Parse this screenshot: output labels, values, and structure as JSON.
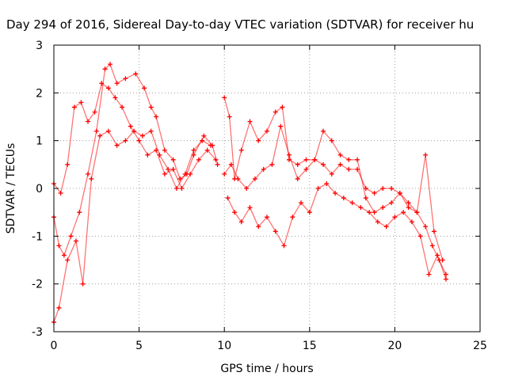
{
  "chart_data": {
    "type": "scatter",
    "title": "Day 294 of 2016, Sidereal Day-to-day VTEC variation (SDTVAR) for receiver hu",
    "xlabel": "GPS time / hours",
    "ylabel": "SDTVAR / TECUs",
    "xlim": [
      0,
      25
    ],
    "ylim": [
      -3,
      3
    ],
    "xticks": [
      "0",
      "5",
      "10",
      "15",
      "20",
      "25"
    ],
    "yticks": [
      "-3",
      "-2",
      "-1",
      "0",
      "1",
      "2",
      "3"
    ],
    "grid": true,
    "marker": "plus",
    "color": "#ff0000",
    "series": [
      {
        "x": [
          0.0,
          0.3,
          0.6,
          1.0,
          1.5,
          2.0,
          2.5,
          3.0,
          3.3,
          3.7,
          4.2,
          4.8,
          5.3,
          5.7,
          6.0,
          6.5,
          7.0,
          7.4,
          7.8,
          8.2,
          8.8,
          9.3,
          9.6
        ],
        "values": [
          -0.6,
          -1.2,
          -1.4,
          -1.0,
          -0.5,
          0.3,
          1.2,
          2.5,
          2.6,
          2.2,
          2.3,
          2.4,
          2.1,
          1.7,
          1.5,
          0.8,
          0.6,
          0.2,
          0.3,
          0.7,
          1.1,
          0.9,
          0.5
        ]
      },
      {
        "x": [
          0.0,
          0.4,
          0.8,
          1.2,
          1.6,
          2.0,
          2.4,
          2.8,
          3.2,
          3.6,
          4.0,
          4.5,
          5.0,
          5.5,
          6.0,
          6.5,
          7.0,
          7.5,
          8.0,
          8.5,
          9.0,
          9.5
        ],
        "values": [
          0.1,
          -0.1,
          0.5,
          1.7,
          1.8,
          1.4,
          1.6,
          2.2,
          2.1,
          1.9,
          1.7,
          1.3,
          1.0,
          0.7,
          0.8,
          0.3,
          0.4,
          0.0,
          0.3,
          0.6,
          0.8,
          0.6
        ]
      },
      {
        "x": [
          0.0,
          0.3,
          0.8,
          1.3,
          1.7,
          2.2,
          2.7,
          3.2,
          3.7,
          4.2,
          4.7,
          5.2,
          5.7,
          6.2,
          6.7,
          7.2,
          7.7,
          8.2,
          8.7,
          9.2
        ],
        "values": [
          -2.8,
          -2.5,
          -1.5,
          -1.1,
          -2.0,
          0.2,
          1.1,
          1.2,
          0.9,
          1.0,
          1.2,
          1.1,
          1.2,
          0.7,
          0.4,
          0.0,
          0.3,
          0.8,
          1.0,
          0.9
        ]
      },
      {
        "x": [
          10.0,
          10.3,
          10.6,
          11.0,
          11.5,
          12.0,
          12.5,
          13.0,
          13.4,
          13.8,
          14.3,
          14.8,
          15.3,
          15.8,
          16.3,
          16.8,
          17.3,
          17.8,
          18.3,
          18.8,
          19.3,
          19.8,
          20.3,
          20.8,
          21.3,
          21.8,
          22.2,
          22.6,
          23.0
        ],
        "values": [
          1.9,
          1.5,
          0.2,
          0.8,
          1.4,
          1.0,
          1.2,
          1.6,
          1.7,
          0.6,
          0.5,
          0.6,
          0.6,
          0.5,
          0.3,
          0.5,
          0.4,
          0.4,
          0.0,
          -0.1,
          0.0,
          0.0,
          -0.1,
          -0.4,
          -0.5,
          -0.8,
          -1.2,
          -1.5,
          -1.8
        ]
      },
      {
        "x": [
          10.0,
          10.4,
          10.8,
          11.3,
          11.8,
          12.3,
          12.8,
          13.3,
          13.8,
          14.3,
          14.8,
          15.3,
          15.8,
          16.3,
          16.8,
          17.3,
          17.8,
          18.3,
          18.8,
          19.3,
          19.8,
          20.3,
          20.8,
          21.3,
          21.8,
          22.3,
          22.8
        ],
        "values": [
          0.3,
          0.5,
          0.2,
          0.0,
          0.2,
          0.4,
          0.5,
          1.3,
          0.7,
          0.2,
          0.4,
          0.6,
          1.2,
          1.0,
          0.7,
          0.6,
          0.6,
          -0.2,
          -0.5,
          -0.4,
          -0.3,
          -0.1,
          -0.3,
          -0.5,
          0.7,
          -0.9,
          -1.5
        ]
      },
      {
        "x": [
          10.2,
          10.6,
          11.0,
          11.5,
          12.0,
          12.5,
          13.0,
          13.5,
          14.0,
          14.5,
          15.0,
          15.5,
          16.0,
          16.5,
          17.0,
          17.5,
          18.0,
          18.5,
          19.0,
          19.5,
          20.0,
          20.5,
          21.0,
          21.5,
          22.0,
          22.5,
          23.0
        ],
        "values": [
          -0.2,
          -0.5,
          -0.7,
          -0.4,
          -0.8,
          -0.6,
          -0.9,
          -1.2,
          -0.6,
          -0.3,
          -0.5,
          0.0,
          0.1,
          -0.1,
          -0.2,
          -0.3,
          -0.4,
          -0.5,
          -0.7,
          -0.8,
          -0.6,
          -0.5,
          -0.7,
          -1.0,
          -1.8,
          -1.4,
          -1.9
        ]
      }
    ]
  }
}
